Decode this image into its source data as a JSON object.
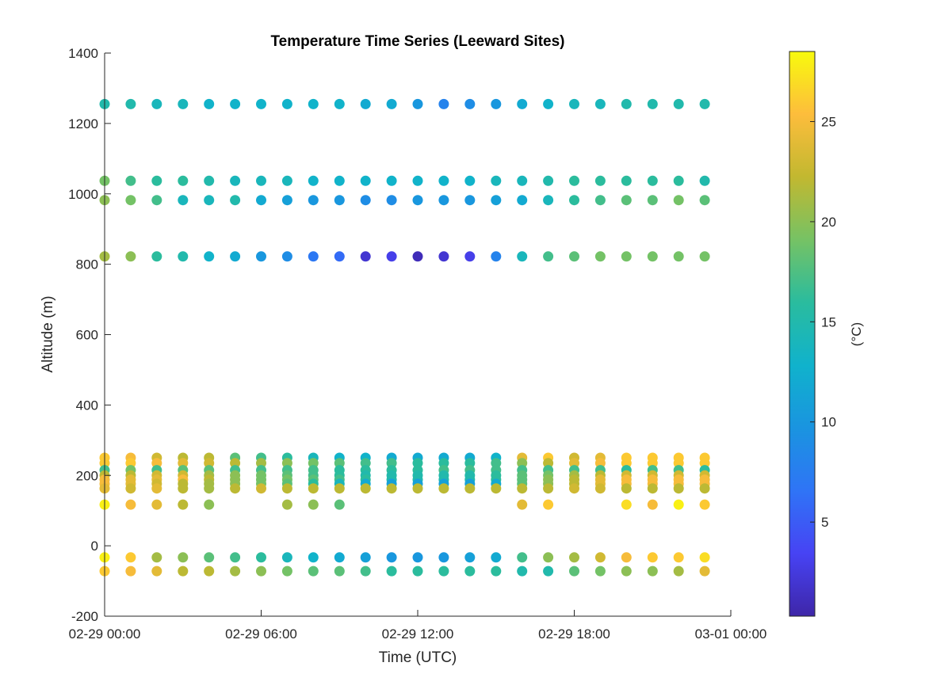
{
  "chart_data": {
    "type": "scatter",
    "title": "Temperature Time Series (Leeward Sites)",
    "xlabel": "Time (UTC)",
    "ylabel": "Altitude (m)",
    "xlim_hours": [
      0,
      24
    ],
    "ylim": [
      -200,
      1400
    ],
    "x_ticks": [
      {
        "hours": 0,
        "label": "02-29 00:00"
      },
      {
        "hours": 6,
        "label": "02-29 06:00"
      },
      {
        "hours": 12,
        "label": "02-29 12:00"
      },
      {
        "hours": 18,
        "label": "02-29 18:00"
      },
      {
        "hours": 24,
        "label": "03-01 00:00"
      }
    ],
    "y_ticks": [
      -200,
      0,
      200,
      400,
      600,
      800,
      1000,
      1200,
      1400
    ],
    "times_hours": [
      0,
      1,
      2,
      3,
      4,
      5,
      6,
      7,
      8,
      9,
      10,
      11,
      12,
      13,
      14,
      15,
      16,
      17,
      18,
      19,
      20,
      21,
      22,
      23
    ],
    "colorbar": {
      "label": "(°C)",
      "range": [
        0.3,
        28.5
      ],
      "ticks": [
        5,
        10,
        15,
        20,
        25
      ],
      "colormap": [
        "#3e26a8",
        "#4743f4",
        "#2f74f6",
        "#1a94e0",
        "#10b2cc",
        "#2abc9e",
        "#76c264",
        "#c2b830",
        "#fdbd3c",
        "#f8fa0d"
      ]
    },
    "sites": [
      {
        "altitude": 1255,
        "temps": [
          15,
          15,
          14,
          14,
          13,
          13,
          13,
          13,
          13,
          13,
          12,
          12,
          10,
          8,
          9,
          10,
          12,
          13,
          14,
          14,
          15,
          15,
          15,
          15
        ]
      },
      {
        "altitude": 1037,
        "temps": [
          19,
          17,
          16,
          16,
          15,
          14,
          14,
          14,
          13,
          13,
          13,
          13,
          13,
          13,
          13,
          14,
          14,
          15,
          16,
          16,
          16,
          16,
          16,
          15
        ]
      },
      {
        "altitude": 982,
        "temps": [
          20,
          19,
          17,
          14,
          14,
          15,
          12,
          11,
          10,
          10,
          9,
          9,
          10,
          10,
          10,
          11,
          12,
          14,
          16,
          17,
          18,
          18,
          19,
          18
        ]
      },
      {
        "altitude": 822,
        "temps": [
          21,
          20,
          16,
          15,
          13,
          12,
          10,
          9,
          7,
          6,
          2,
          3,
          1,
          2,
          3,
          8,
          14,
          17,
          18,
          19,
          19,
          19,
          19,
          19
        ]
      },
      {
        "altitude": 250,
        "temps": [
          26,
          25,
          23,
          22,
          22,
          18,
          17,
          16,
          14,
          13,
          13,
          12,
          12,
          12,
          12,
          13,
          24,
          26,
          23,
          24,
          26,
          26,
          26,
          26
        ]
      },
      {
        "altitude": 235,
        "temps": [
          26,
          26,
          25,
          24,
          23,
          22,
          21,
          20,
          19,
          18,
          17,
          17,
          16,
          16,
          16,
          17,
          20,
          22,
          24,
          25,
          26,
          26,
          26,
          26
        ]
      },
      {
        "altitude": 215,
        "temps": [
          17,
          19,
          17,
          18,
          18,
          17,
          17,
          17,
          17,
          16,
          16,
          16,
          16,
          17,
          17,
          17,
          17,
          17,
          17,
          17,
          16,
          17,
          17,
          16
        ]
      },
      {
        "altitude": 200,
        "temps": [
          22,
          22,
          23,
          23,
          21,
          20,
          19,
          18,
          17,
          16,
          15,
          15,
          15,
          15,
          15,
          16,
          18,
          19,
          21,
          22,
          23,
          23,
          23,
          23
        ]
      },
      {
        "altitude": 188,
        "temps": [
          25,
          24,
          24,
          25,
          22,
          20,
          19,
          19,
          18,
          17,
          16,
          15,
          15,
          15,
          15,
          16,
          18,
          20,
          22,
          24,
          25,
          25,
          25,
          25
        ]
      },
      {
        "altitude": 176,
        "temps": [
          25,
          24,
          23,
          22,
          21,
          20,
          19,
          18,
          16,
          14,
          12,
          11,
          11,
          11,
          11,
          12,
          18,
          20,
          22,
          24,
          25,
          25,
          25,
          25
        ]
      },
      {
        "altitude": 163,
        "temps": [
          24,
          23,
          24,
          22,
          21,
          22,
          23,
          22,
          22,
          22,
          22,
          22,
          22,
          22,
          22,
          22,
          22,
          22,
          23,
          23,
          22,
          22,
          22,
          22
        ]
      },
      {
        "altitude": 117,
        "temps": [
          28,
          25,
          24,
          22,
          20,
          null,
          null,
          21,
          20,
          18,
          null,
          null,
          null,
          null,
          null,
          null,
          24,
          26,
          null,
          null,
          27,
          25,
          28,
          26
        ]
      },
      {
        "altitude": -33,
        "temps": [
          28,
          26,
          21,
          20,
          18,
          17,
          16,
          14,
          13,
          12,
          11,
          10,
          10,
          10,
          11,
          12,
          17,
          20,
          21,
          23,
          25,
          26,
          26,
          27
        ]
      },
      {
        "altitude": -72,
        "temps": [
          26,
          25,
          24,
          22,
          22,
          21,
          20,
          19,
          18,
          18,
          17,
          16,
          16,
          16,
          16,
          16,
          15,
          15,
          18,
          19,
          20,
          20,
          21,
          24
        ]
      }
    ]
  }
}
